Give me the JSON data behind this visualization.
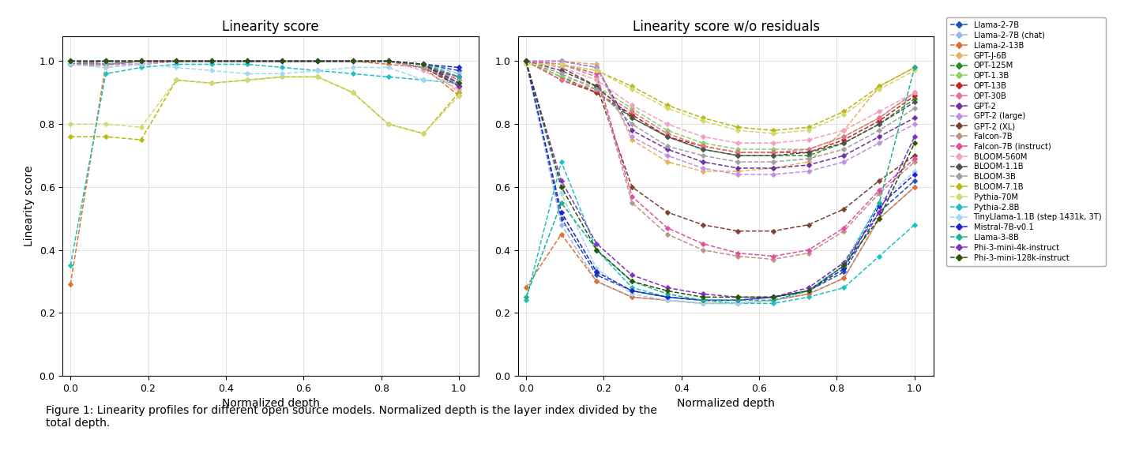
{
  "title1": "Linearity score",
  "title2": "Linearity score w/o residuals",
  "xlabel": "Normalized depth",
  "ylabel": "Linearity score",
  "caption": "Figure 1: Linearity profiles for different open source models. Normalized depth is the layer index divided by the\ntotal depth.",
  "models": [
    {
      "name": "Llama-2-7B",
      "color": "#1f4faf"
    },
    {
      "name": "Llama-2-7B (chat)",
      "color": "#9eb8e8"
    },
    {
      "name": "Llama-2-13B",
      "color": "#e07030"
    },
    {
      "name": "GPT-J-6B",
      "color": "#e8b060"
    },
    {
      "name": "OPT-125M",
      "color": "#2a8a2a"
    },
    {
      "name": "OPT-1.3B",
      "color": "#90d060"
    },
    {
      "name": "OPT-13B",
      "color": "#c82020"
    },
    {
      "name": "OPT-30B",
      "color": "#e87090"
    },
    {
      "name": "GPT-2",
      "color": "#7030a0"
    },
    {
      "name": "GPT-2 (large)",
      "color": "#c090e0"
    },
    {
      "name": "GPT-2 (XL)",
      "color": "#7a4030"
    },
    {
      "name": "Falcon-7B",
      "color": "#c09080"
    },
    {
      "name": "Falcon-7B (instruct)",
      "color": "#e050a0"
    },
    {
      "name": "BLOOM-560M",
      "color": "#f0a0c0"
    },
    {
      "name": "BLOOM-1.1B",
      "color": "#505050"
    },
    {
      "name": "BLOOM-3B",
      "color": "#a0a0a0"
    },
    {
      "name": "BLOOM-7.1B",
      "color": "#b8b810"
    },
    {
      "name": "Pythia-70M",
      "color": "#d4d870"
    },
    {
      "name": "Pythia-2.8B",
      "color": "#20c0c0"
    },
    {
      "name": "TinyLlama-1.1B (step 1431k, 3T)",
      "color": "#a0d8f0"
    },
    {
      "name": "Mistral-7B-v0.1",
      "color": "#2020d0"
    },
    {
      "name": "Llama-3-8B",
      "color": "#20b090"
    },
    {
      "name": "Phi-3-mini-4k-instruct",
      "color": "#8030c0"
    },
    {
      "name": "Phi-3-mini-128k-instruct",
      "color": "#2a5500"
    }
  ],
  "linearity_score": {
    "Llama-2-7B": [
      1.0,
      1.0,
      1.0,
      1.0,
      1.0,
      1.0,
      1.0,
      1.0,
      1.0,
      1.0,
      0.99,
      0.97
    ],
    "Llama-2-7B (chat)": [
      1.0,
      1.0,
      1.0,
      1.0,
      1.0,
      1.0,
      1.0,
      1.0,
      1.0,
      1.0,
      0.99,
      0.96
    ],
    "Llama-2-13B": [
      0.29,
      0.99,
      1.0,
      1.0,
      1.0,
      1.0,
      1.0,
      1.0,
      1.0,
      0.99,
      0.98,
      0.89
    ],
    "GPT-J-6B": [
      1.0,
      0.99,
      1.0,
      1.0,
      1.0,
      1.0,
      1.0,
      1.0,
      1.0,
      1.0,
      0.99,
      0.9
    ],
    "OPT-125M": [
      0.99,
      1.0,
      1.0,
      1.0,
      1.0,
      1.0,
      1.0,
      1.0,
      1.0,
      1.0,
      0.99,
      0.95
    ],
    "OPT-1.3B": [
      0.99,
      1.0,
      1.0,
      1.0,
      1.0,
      1.0,
      1.0,
      1.0,
      1.0,
      1.0,
      0.99,
      0.95
    ],
    "OPT-13B": [
      0.99,
      1.0,
      1.0,
      1.0,
      1.0,
      1.0,
      1.0,
      1.0,
      1.0,
      1.0,
      0.99,
      0.94
    ],
    "OPT-30B": [
      0.99,
      1.0,
      1.0,
      1.0,
      1.0,
      1.0,
      1.0,
      1.0,
      1.0,
      1.0,
      0.99,
      0.94
    ],
    "GPT-2": [
      0.99,
      0.99,
      0.99,
      1.0,
      1.0,
      1.0,
      1.0,
      1.0,
      1.0,
      1.0,
      0.98,
      0.95
    ],
    "GPT-2 (large)": [
      0.99,
      0.99,
      0.99,
      1.0,
      1.0,
      1.0,
      1.0,
      1.0,
      1.0,
      1.0,
      0.98,
      0.94
    ],
    "GPT-2 (XL)": [
      0.99,
      0.99,
      1.0,
      1.0,
      1.0,
      1.0,
      1.0,
      1.0,
      1.0,
      1.0,
      0.98,
      0.92
    ],
    "Falcon-7B": [
      0.99,
      0.99,
      1.0,
      1.0,
      1.0,
      1.0,
      1.0,
      1.0,
      1.0,
      1.0,
      0.99,
      0.93
    ],
    "Falcon-7B (instruct)": [
      0.99,
      0.99,
      1.0,
      1.0,
      1.0,
      1.0,
      1.0,
      1.0,
      1.0,
      1.0,
      0.99,
      0.92
    ],
    "BLOOM-560M": [
      0.99,
      0.98,
      0.99,
      1.0,
      1.0,
      1.0,
      1.0,
      1.0,
      1.0,
      1.0,
      0.97,
      0.91
    ],
    "BLOOM-1.1B": [
      0.99,
      0.99,
      1.0,
      1.0,
      1.0,
      1.0,
      1.0,
      1.0,
      1.0,
      1.0,
      0.98,
      0.92
    ],
    "BLOOM-3B": [
      0.99,
      0.99,
      1.0,
      1.0,
      1.0,
      1.0,
      1.0,
      1.0,
      1.0,
      1.0,
      0.98,
      0.93
    ],
    "BLOOM-7.1B": [
      0.76,
      0.76,
      0.75,
      0.94,
      0.93,
      0.94,
      0.95,
      0.95,
      0.9,
      0.8,
      0.77,
      0.9
    ],
    "Pythia-70M": [
      0.8,
      0.8,
      0.79,
      0.94,
      0.93,
      0.94,
      0.95,
      0.95,
      0.9,
      0.8,
      0.77,
      0.89
    ],
    "Pythia-2.8B": [
      0.35,
      0.96,
      0.98,
      0.99,
      0.99,
      0.99,
      0.98,
      0.97,
      0.96,
      0.95,
      0.94,
      0.93
    ],
    "TinyLlama-1.1B (step 1431k, 3T)": [
      0.99,
      0.98,
      0.99,
      0.98,
      0.97,
      0.96,
      0.96,
      0.97,
      0.98,
      0.98,
      0.94,
      0.93
    ],
    "Mistral-7B-v0.1": [
      1.0,
      1.0,
      1.0,
      1.0,
      1.0,
      1.0,
      1.0,
      1.0,
      1.0,
      1.0,
      0.99,
      0.98
    ],
    "Llama-3-8B": [
      1.0,
      1.0,
      1.0,
      1.0,
      1.0,
      1.0,
      1.0,
      1.0,
      1.0,
      1.0,
      0.99,
      0.95
    ],
    "Phi-3-mini-4k-instruct": [
      1.0,
      1.0,
      1.0,
      1.0,
      1.0,
      1.0,
      1.0,
      1.0,
      1.0,
      1.0,
      0.99,
      0.92
    ],
    "Phi-3-mini-128k-instruct": [
      1.0,
      1.0,
      1.0,
      1.0,
      1.0,
      1.0,
      1.0,
      1.0,
      1.0,
      1.0,
      0.99,
      0.93
    ]
  },
  "linearity_score_no_residual": {
    "Llama-2-7B": [
      1.0,
      0.5,
      0.32,
      0.27,
      0.25,
      0.24,
      0.24,
      0.25,
      0.27,
      0.33,
      0.52,
      0.62
    ],
    "Llama-2-7B (chat)": [
      1.0,
      0.48,
      0.3,
      0.25,
      0.24,
      0.23,
      0.23,
      0.24,
      0.26,
      0.31,
      0.5,
      0.6
    ],
    "Llama-2-13B": [
      0.28,
      0.45,
      0.3,
      0.25,
      0.24,
      0.23,
      0.23,
      0.24,
      0.26,
      0.31,
      0.5,
      0.6
    ],
    "GPT-J-6B": [
      1.0,
      1.0,
      0.99,
      0.75,
      0.68,
      0.65,
      0.65,
      0.66,
      0.68,
      0.78,
      0.92,
      0.98
    ],
    "OPT-125M": [
      1.0,
      0.95,
      0.9,
      0.82,
      0.76,
      0.72,
      0.7,
      0.7,
      0.7,
      0.74,
      0.8,
      0.88
    ],
    "OPT-1.3B": [
      1.0,
      0.95,
      0.92,
      0.85,
      0.78,
      0.74,
      0.72,
      0.72,
      0.72,
      0.76,
      0.82,
      0.9
    ],
    "OPT-13B": [
      1.0,
      0.94,
      0.9,
      0.83,
      0.76,
      0.73,
      0.71,
      0.71,
      0.71,
      0.75,
      0.81,
      0.89
    ],
    "OPT-30B": [
      1.0,
      0.94,
      0.91,
      0.84,
      0.77,
      0.73,
      0.71,
      0.71,
      0.72,
      0.76,
      0.82,
      0.9
    ],
    "GPT-2": [
      1.0,
      1.0,
      0.98,
      0.78,
      0.72,
      0.68,
      0.66,
      0.66,
      0.67,
      0.7,
      0.76,
      0.82
    ],
    "GPT-2 (large)": [
      1.0,
      1.0,
      0.98,
      0.76,
      0.7,
      0.66,
      0.64,
      0.64,
      0.65,
      0.68,
      0.74,
      0.8
    ],
    "GPT-2 (XL)": [
      1.0,
      0.98,
      0.92,
      0.6,
      0.52,
      0.48,
      0.46,
      0.46,
      0.48,
      0.53,
      0.62,
      0.7
    ],
    "Falcon-7B": [
      1.0,
      0.99,
      0.95,
      0.55,
      0.45,
      0.4,
      0.38,
      0.37,
      0.39,
      0.46,
      0.58,
      0.68
    ],
    "Falcon-7B (instruct)": [
      1.0,
      0.99,
      0.96,
      0.57,
      0.47,
      0.42,
      0.39,
      0.38,
      0.4,
      0.47,
      0.59,
      0.69
    ],
    "BLOOM-560M": [
      1.0,
      0.98,
      0.94,
      0.86,
      0.8,
      0.76,
      0.74,
      0.74,
      0.75,
      0.78,
      0.84,
      0.9
    ],
    "BLOOM-1.1B": [
      1.0,
      0.97,
      0.92,
      0.82,
      0.76,
      0.72,
      0.7,
      0.7,
      0.71,
      0.74,
      0.8,
      0.87
    ],
    "BLOOM-3B": [
      1.0,
      0.96,
      0.91,
      0.8,
      0.73,
      0.7,
      0.68,
      0.68,
      0.69,
      0.72,
      0.78,
      0.85
    ],
    "BLOOM-7.1B": [
      0.99,
      0.99,
      0.97,
      0.92,
      0.86,
      0.82,
      0.79,
      0.78,
      0.79,
      0.84,
      0.92,
      0.98
    ],
    "Pythia-70M": [
      0.99,
      0.99,
      0.97,
      0.91,
      0.85,
      0.81,
      0.78,
      0.77,
      0.78,
      0.83,
      0.91,
      0.97
    ],
    "Pythia-2.8B": [
      0.24,
      0.68,
      0.4,
      0.28,
      0.25,
      0.24,
      0.23,
      0.23,
      0.25,
      0.28,
      0.38,
      0.48
    ],
    "TinyLlama-1.1B (step 1431k, 3T)": [
      1.0,
      0.58,
      0.34,
      0.26,
      0.24,
      0.23,
      0.23,
      0.24,
      0.27,
      0.36,
      0.55,
      0.65
    ],
    "Mistral-7B-v0.1": [
      1.0,
      0.52,
      0.33,
      0.27,
      0.25,
      0.24,
      0.24,
      0.25,
      0.27,
      0.34,
      0.54,
      0.64
    ],
    "Llama-3-8B": [
      0.25,
      0.55,
      0.4,
      0.3,
      0.26,
      0.24,
      0.24,
      0.24,
      0.27,
      0.35,
      0.55,
      0.98
    ],
    "Phi-3-mini-4k-instruct": [
      1.0,
      0.62,
      0.42,
      0.32,
      0.28,
      0.26,
      0.25,
      0.25,
      0.28,
      0.36,
      0.52,
      0.76
    ],
    "Phi-3-mini-128k-instruct": [
      1.0,
      0.6,
      0.4,
      0.3,
      0.27,
      0.25,
      0.25,
      0.25,
      0.27,
      0.35,
      0.5,
      0.74
    ]
  }
}
